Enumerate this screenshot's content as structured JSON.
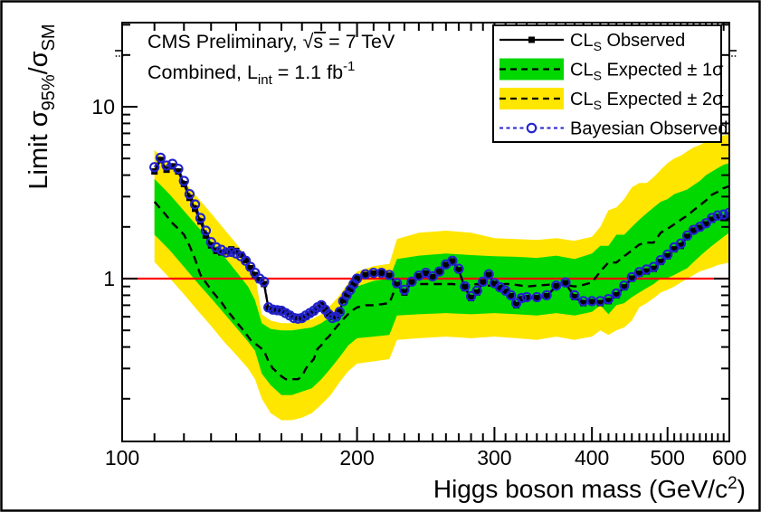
{
  "figure": {
    "header_line1": {
      "pre": "CMS Preliminary, ",
      "sqrt_s": "√s",
      "post": " = 7 TeV"
    },
    "header_line2": {
      "pre": "Combined, L",
      "sub": "int",
      "mid": " = 1.1 fb",
      "sup": "-1"
    }
  },
  "axes": {
    "x": {
      "label": {
        "pre": "Higgs boson mass (GeV/c",
        "sup": "2",
        "post": ")"
      },
      "scale": "log",
      "min": 100,
      "max": 600,
      "major_ticks": [
        100,
        200,
        300,
        400,
        500,
        600
      ],
      "tick_labels": [
        "100",
        "200",
        "300",
        "400",
        "500",
        "600"
      ]
    },
    "y": {
      "label": {
        "pre": "Limit σ",
        "sub1": "95%",
        "mid": "/σ",
        "sub2": "SM"
      },
      "scale": "log",
      "min": 0.113,
      "max": 30,
      "major_ticks": [
        1,
        10
      ],
      "tick_labels": [
        "1",
        "10"
      ]
    }
  },
  "legend": {
    "entries": [
      {
        "pre": "CL",
        "sub": "S",
        "post": " Observed",
        "symbol": "black-line-square-marker"
      },
      {
        "pre": "CL",
        "sub": "S",
        "post": " Expected ± 1σ",
        "symbol": "green-band-dashed-line"
      },
      {
        "pre": "CL",
        "sub": "S",
        "post": " Expected ± 2σ",
        "symbol": "yellow-band-dashed-line"
      },
      {
        "text": "Bayesian Observed",
        "symbol": "blue-dashed-open-circle"
      }
    ]
  },
  "chart_data": {
    "type": "line",
    "title": "CMS Preliminary, √s = 7 TeV — Combined, L_int = 1.1 fb^-1",
    "xlabel": "Higgs boson mass (GeV/c^2)",
    "ylabel": "Limit σ_95%/σ_SM",
    "xscale": "log",
    "yscale": "log",
    "xlim": [
      100,
      600
    ],
    "ylim": [
      0.113,
      30
    ],
    "reference_line_y": 1.0,
    "legend_position": "top-right",
    "grid": false,
    "colors": {
      "band_1sigma": "#00d800",
      "band_2sigma": "#ffe600",
      "observed": "#000000",
      "expected": "#000000",
      "bayesian": "#2222cc",
      "reference_line": "#ff0000"
    },
    "masses": [
      110,
      112,
      114,
      116,
      118,
      120,
      122,
      124,
      126,
      128,
      130,
      132,
      134,
      136,
      138,
      140,
      142,
      144,
      146,
      148,
      150,
      152,
      154,
      156,
      158,
      160,
      162,
      164,
      166,
      168,
      170,
      172,
      174,
      176,
      178,
      180,
      182,
      184,
      186,
      188,
      190,
      192,
      194,
      196,
      198,
      200,
      205,
      210,
      215,
      220,
      225,
      230,
      235,
      240,
      245,
      250,
      255,
      260,
      265,
      270,
      275,
      280,
      285,
      290,
      295,
      300,
      305,
      310,
      315,
      320,
      325,
      330,
      340,
      350,
      360,
      370,
      380,
      390,
      400,
      410,
      420,
      430,
      440,
      450,
      460,
      470,
      480,
      490,
      500,
      510,
      520,
      530,
      540,
      550,
      560,
      570,
      580,
      590,
      600
    ],
    "series": [
      {
        "name": "CLs Observed",
        "values": [
          4.2,
          4.9,
          4.3,
          4.5,
          4.2,
          3.55,
          2.95,
          2.55,
          2.15,
          1.78,
          1.56,
          1.45,
          1.42,
          1.44,
          1.48,
          1.45,
          1.38,
          1.28,
          1.15,
          1.05,
          0.98,
          0.93,
          0.67,
          0.66,
          0.655,
          0.65,
          0.64,
          0.62,
          0.6,
          0.59,
          0.585,
          0.6,
          0.62,
          0.64,
          0.67,
          0.7,
          0.66,
          0.625,
          0.6,
          0.61,
          0.65,
          0.75,
          0.81,
          0.87,
          0.93,
          1.0,
          1.05,
          1.07,
          1.08,
          1.04,
          0.92,
          0.83,
          0.95,
          1.03,
          1.07,
          1.02,
          1.1,
          1.2,
          1.26,
          1.12,
          0.88,
          0.77,
          0.83,
          0.95,
          1.05,
          0.93,
          0.88,
          0.84,
          0.79,
          0.7,
          0.76,
          0.77,
          0.77,
          0.79,
          0.9,
          0.94,
          0.78,
          0.72,
          0.73,
          0.72,
          0.74,
          0.8,
          0.89,
          1.0,
          1.07,
          1.1,
          1.14,
          1.25,
          1.35,
          1.48,
          1.55,
          1.75,
          1.9,
          1.97,
          2.07,
          2.2,
          2.28,
          2.25,
          2.25
        ]
      },
      {
        "name": "CLs Expected",
        "values": [
          2.8,
          2.55,
          2.32,
          2.1,
          1.95,
          1.8,
          1.55,
          1.3,
          1.05,
          0.95,
          0.86,
          0.79,
          0.73,
          0.66,
          0.61,
          0.56,
          0.52,
          0.48,
          0.44,
          0.42,
          0.4,
          0.38,
          0.33,
          0.3,
          0.285,
          0.27,
          0.26,
          0.26,
          0.26,
          0.26,
          0.27,
          0.3,
          0.32,
          0.34,
          0.39,
          0.41,
          0.44,
          0.46,
          0.49,
          0.52,
          0.55,
          0.58,
          0.61,
          0.64,
          0.66,
          0.68,
          0.7,
          0.7,
          0.71,
          0.72,
          0.93,
          0.93,
          0.93,
          0.93,
          0.93,
          0.93,
          0.93,
          0.93,
          0.93,
          0.92,
          0.92,
          0.92,
          0.93,
          0.91,
          0.91,
          0.92,
          0.92,
          0.93,
          0.93,
          0.92,
          0.91,
          0.9,
          0.91,
          0.92,
          0.93,
          0.92,
          0.9,
          0.92,
          0.95,
          1.1,
          1.24,
          1.24,
          1.35,
          1.46,
          1.58,
          1.62,
          1.62,
          1.85,
          1.95,
          2.07,
          2.2,
          2.33,
          2.5,
          2.67,
          2.85,
          3.08,
          3.2,
          3.36,
          3.45
        ]
      },
      {
        "name": "Bayesian Observed",
        "values": [
          4.45,
          5.05,
          4.55,
          4.65,
          4.35,
          3.7,
          3.1,
          2.7,
          2.25,
          1.9,
          1.63,
          1.52,
          1.47,
          1.42,
          1.43,
          1.4,
          1.35,
          1.27,
          1.17,
          1.08,
          1.0,
          0.96,
          0.68,
          0.66,
          0.655,
          0.65,
          0.63,
          0.61,
          0.59,
          0.585,
          0.59,
          0.61,
          0.63,
          0.65,
          0.68,
          0.7,
          0.66,
          0.62,
          0.59,
          0.6,
          0.64,
          0.74,
          0.8,
          0.86,
          0.93,
          1.0,
          1.06,
          1.08,
          1.08,
          1.05,
          0.94,
          0.86,
          0.96,
          1.04,
          1.08,
          1.03,
          1.1,
          1.21,
          1.27,
          1.14,
          0.9,
          0.79,
          0.85,
          0.96,
          1.06,
          0.94,
          0.89,
          0.85,
          0.8,
          0.72,
          0.77,
          0.78,
          0.78,
          0.8,
          0.91,
          0.95,
          0.8,
          0.74,
          0.74,
          0.74,
          0.76,
          0.82,
          0.91,
          1.02,
          1.09,
          1.13,
          1.17,
          1.28,
          1.38,
          1.52,
          1.6,
          1.78,
          1.92,
          2.0,
          2.1,
          2.25,
          2.33,
          2.36,
          2.42
        ]
      }
    ],
    "bands": {
      "masses": [
        110,
        115,
        120,
        125,
        130,
        135,
        140,
        145,
        148,
        151,
        155,
        160,
        165,
        170,
        175,
        180,
        185,
        190,
        195,
        200,
        210,
        220,
        225,
        240,
        260,
        280,
        300,
        320,
        340,
        360,
        380,
        400,
        410,
        420,
        430,
        440,
        450,
        460,
        470,
        480,
        490,
        500,
        510,
        520,
        530,
        540,
        550,
        560,
        570,
        580,
        590,
        600
      ],
      "expected_plus2": [
        5.6,
        4.6,
        3.7,
        2.95,
        2.4,
        1.95,
        1.6,
        1.3,
        1.05,
        0.62,
        0.57,
        0.55,
        0.55,
        0.56,
        0.58,
        0.62,
        0.7,
        0.8,
        0.95,
        1.1,
        1.18,
        1.22,
        1.7,
        1.85,
        1.9,
        1.85,
        1.72,
        1.7,
        1.68,
        1.72,
        1.66,
        1.75,
        2.0,
        2.5,
        2.6,
        2.9,
        3.4,
        3.6,
        3.6,
        3.9,
        4.3,
        4.7,
        5.0,
        5.2,
        5.5,
        5.8,
        6.0,
        6.3,
        6.5,
        6.7,
        6.8,
        6.9
      ],
      "expected_plus1": [
        3.8,
        3.1,
        2.48,
        2.0,
        1.65,
        1.35,
        1.1,
        0.9,
        0.75,
        0.55,
        0.51,
        0.5,
        0.5,
        0.51,
        0.52,
        0.55,
        0.6,
        0.68,
        0.8,
        0.9,
        0.97,
        1.0,
        1.3,
        1.36,
        1.4,
        1.37,
        1.35,
        1.34,
        1.32,
        1.36,
        1.3,
        1.4,
        1.55,
        1.55,
        1.8,
        1.8,
        2.0,
        2.2,
        2.4,
        2.6,
        2.8,
        2.9,
        3.1,
        3.2,
        3.3,
        3.5,
        3.7,
        4.0,
        4.2,
        4.4,
        4.6,
        4.7
      ],
      "expected_minus1": [
        1.8,
        1.47,
        1.17,
        0.94,
        0.77,
        0.63,
        0.52,
        0.43,
        0.38,
        0.28,
        0.24,
        0.21,
        0.21,
        0.22,
        0.23,
        0.26,
        0.3,
        0.35,
        0.41,
        0.45,
        0.46,
        0.47,
        0.61,
        0.62,
        0.63,
        0.62,
        0.63,
        0.62,
        0.61,
        0.63,
        0.61,
        0.64,
        0.7,
        0.62,
        0.7,
        0.72,
        0.78,
        0.83,
        0.88,
        0.93,
        1.0,
        1.01,
        1.05,
        1.1,
        1.15,
        1.25,
        1.35,
        1.45,
        1.55,
        1.65,
        1.75,
        1.85
      ],
      "expected_minus2": [
        1.25,
        1.01,
        0.81,
        0.65,
        0.53,
        0.43,
        0.36,
        0.3,
        0.26,
        0.2,
        0.165,
        0.15,
        0.15,
        0.155,
        0.165,
        0.185,
        0.21,
        0.25,
        0.29,
        0.32,
        0.33,
        0.34,
        0.44,
        0.45,
        0.46,
        0.45,
        0.46,
        0.45,
        0.44,
        0.46,
        0.44,
        0.46,
        0.5,
        0.47,
        0.5,
        0.52,
        0.57,
        0.68,
        0.72,
        0.77,
        0.83,
        0.86,
        0.9,
        0.95,
        1.0,
        1.05,
        1.1,
        1.13,
        1.16,
        1.2,
        1.22,
        1.24
      ]
    }
  }
}
